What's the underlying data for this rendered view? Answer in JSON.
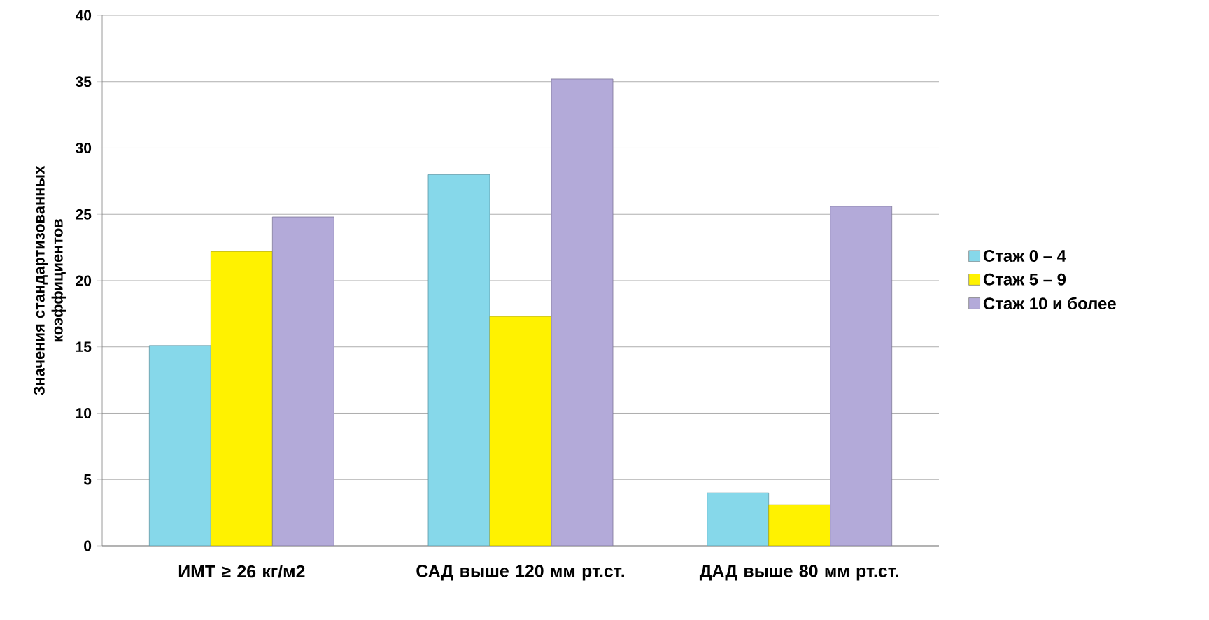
{
  "chart_data": {
    "type": "bar",
    "ylabel": "Значения стандартизованных коэффициентов",
    "categories": [
      "ИМТ ≥ 26 кг/м2",
      "САД выше 120 мм рт.ст.",
      "ДАД выше 80 мм рт.ст."
    ],
    "series": [
      {
        "name": "Стаж 0 – 4",
        "color": "#86d8ea",
        "values": [
          15.1,
          28.0,
          4.0
        ]
      },
      {
        "name": "Стаж 5 – 9",
        "color": "#fff200",
        "values": [
          22.2,
          17.3,
          3.1
        ]
      },
      {
        "name": "Стаж 10 и более",
        "color": "#b3aad9",
        "values": [
          24.8,
          35.2,
          25.6
        ]
      }
    ],
    "ylim": [
      0,
      40
    ],
    "yticks": [
      0,
      5,
      10,
      15,
      20,
      25,
      30,
      35,
      40
    ],
    "grid": "y",
    "legend": "right"
  }
}
